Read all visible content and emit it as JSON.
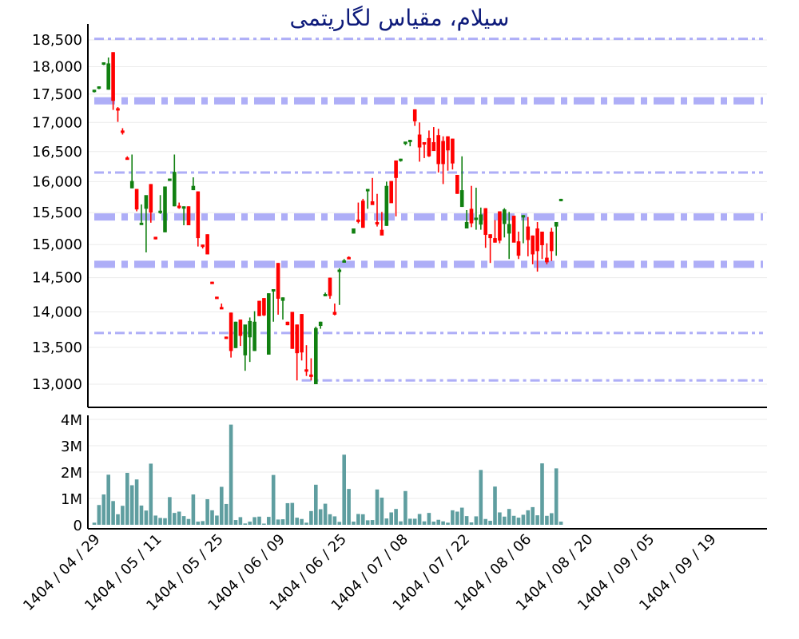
{
  "title": "سیلام، مقیاس لگاریتمی",
  "colors": {
    "up": "#118011",
    "down": "#ff0000",
    "volume": "#5f9ea0",
    "level": "#aeaef7",
    "title": "#0d1a7a",
    "grid": "#ebebeb",
    "axis": "#000000"
  },
  "chart_data": [
    {
      "type": "candlestick",
      "title": "سیلام، مقیاس لگاریتمی",
      "yscale": "log",
      "ylim": [
        12800,
        18600
      ],
      "yticks": [
        13000,
        13500,
        14000,
        14500,
        15000,
        15500,
        16000,
        16500,
        17000,
        17500,
        18000,
        18500
      ],
      "ytick_labels": [
        "13,000",
        "13,500",
        "14,000",
        "14,500",
        "15,000",
        "15,500",
        "16,000",
        "16,500",
        "17,000",
        "17,500",
        "18,000",
        "18,500"
      ],
      "xtick_labels": [
        "1404 / 04 / 29",
        "1404 / 05 / 11",
        "1404 / 05 / 25",
        "1404 / 06 / 09",
        "1404 / 06 / 25",
        "1404 / 07 / 08",
        "1404 / 07 / 22",
        "1404 / 08 / 06",
        "1404 / 08 / 20",
        "1404 / 09 / 05",
        "1404 / 09 / 19"
      ],
      "xtick_index": [
        0,
        13,
        26,
        39,
        52,
        65,
        78,
        91,
        104,
        117,
        130
      ],
      "levels": [
        {
          "price": 18520,
          "style": "thin-dashdot",
          "x_start_index": 0
        },
        {
          "price": 17380,
          "style": "thick-dashdot",
          "x_start_index": 0
        },
        {
          "price": 16150,
          "style": "thin-dashdot",
          "x_start_index": 0
        },
        {
          "price": 15430,
          "style": "thick-dashdot",
          "x_start_index": 0
        },
        {
          "price": 14700,
          "style": "thick-dashdot",
          "x_start_index": 0
        },
        {
          "price": 13700,
          "style": "thin-dashdot",
          "x_start_index": 0
        },
        {
          "price": 13050,
          "style": "thin-dashdot",
          "x_start_index": 44
        }
      ],
      "candles": [
        [
          17550,
          17580,
          17530,
          17580
        ],
        [
          17600,
          17640,
          17590,
          17640
        ],
        [
          18050,
          18080,
          18030,
          18080
        ],
        [
          17580,
          18170,
          17580,
          18060
        ],
        [
          18270,
          18270,
          17220,
          17380
        ],
        [
          17250,
          17270,
          17010,
          17230
        ],
        [
          16860,
          16900,
          16790,
          16820
        ],
        [
          16400,
          16420,
          16380,
          16390
        ],
        [
          15890,
          16450,
          15890,
          16010
        ],
        [
          15880,
          15880,
          15520,
          15550
        ],
        [
          15340,
          15630,
          15340,
          15340
        ],
        [
          15560,
          15560,
          14880,
          15780
        ],
        [
          15960,
          15960,
          15340,
          15500
        ],
        [
          15120,
          15120,
          15080,
          15080
        ],
        [
          15530,
          15780,
          15480,
          15530
        ],
        [
          15190,
          15920,
          15190,
          15920
        ],
        [
          16030,
          16050,
          16030,
          16050
        ],
        [
          15600,
          16450,
          15600,
          16160
        ],
        [
          15610,
          15660,
          15560,
          15600
        ],
        [
          15600,
          15600,
          15300,
          15600
        ],
        [
          15600,
          15600,
          15300,
          15300
        ],
        [
          15860,
          16070,
          15860,
          15930
        ],
        [
          15840,
          15840,
          14970,
          15100
        ],
        [
          15000,
          15000,
          14940,
          14980
        ],
        [
          15160,
          15160,
          14850,
          14850
        ],
        [
          14440,
          14440,
          14420,
          14420
        ],
        [
          14220,
          14220,
          14190,
          14190
        ],
        [
          14070,
          14120,
          14040,
          14040
        ],
        [
          13650,
          13650,
          13620,
          13620
        ],
        [
          13990,
          13990,
          13360,
          13450
        ],
        [
          13490,
          13860,
          13490,
          13860
        ],
        [
          13890,
          13890,
          13520,
          13660
        ],
        [
          13390,
          13680,
          13180,
          13820
        ],
        [
          13640,
          13920,
          13300,
          13870
        ],
        [
          13450,
          14010,
          13450,
          13860
        ],
        [
          14160,
          14160,
          13940,
          13940
        ],
        [
          14200,
          14200,
          13940,
          13950
        ],
        [
          13400,
          14270,
          13400,
          14270
        ],
        [
          14300,
          14320,
          13860,
          14330
        ],
        [
          14720,
          14720,
          13960,
          14190
        ],
        [
          14160,
          14210,
          13890,
          14210
        ],
        [
          13860,
          13860,
          13810,
          13810
        ],
        [
          14000,
          14000,
          13480,
          13480
        ],
        [
          13820,
          13820,
          13050,
          13420
        ],
        [
          13970,
          13970,
          13320,
          13430
        ],
        [
          13200,
          13530,
          13110,
          13170
        ],
        [
          13130,
          13350,
          13050,
          13120
        ],
        [
          13000,
          13790,
          13000,
          13770
        ],
        [
          13800,
          13860,
          13760,
          13860
        ],
        [
          14260,
          14280,
          14240,
          14260
        ],
        [
          14500,
          14500,
          14190,
          14230
        ],
        [
          14000,
          14120,
          13950,
          13960
        ],
        [
          14620,
          14640,
          14100,
          14620
        ],
        [
          14760,
          14780,
          14730,
          14760
        ],
        [
          14810,
          14820,
          14780,
          14800
        ],
        [
          15170,
          15250,
          15170,
          15250
        ],
        [
          15390,
          15660,
          15330,
          15360
        ],
        [
          15690,
          15720,
          15260,
          15260
        ],
        [
          15860,
          15880,
          15560,
          15880
        ],
        [
          15680,
          16060,
          15680,
          15620
        ],
        [
          15350,
          15800,
          15280,
          15340
        ],
        [
          15230,
          15510,
          15230,
          15140
        ],
        [
          15290,
          16000,
          15290,
          15930
        ],
        [
          16010,
          16010,
          15790,
          15650
        ],
        [
          16350,
          16350,
          15440,
          16060
        ],
        [
          16360,
          16380,
          16330,
          16380
        ],
        [
          16650,
          16650,
          16610,
          16670
        ],
        [
          16700,
          16700,
          16590,
          16700
        ],
        [
          17230,
          17230,
          16940,
          17020
        ],
        [
          16790,
          17000,
          16330,
          16570
        ],
        [
          16660,
          16660,
          16390,
          16620
        ],
        [
          16730,
          16860,
          16410,
          16420
        ],
        [
          16660,
          16920,
          16570,
          16510
        ],
        [
          16780,
          16890,
          16150,
          16290
        ],
        [
          16680,
          16760,
          15960,
          16290
        ],
        [
          16760,
          16760,
          16180,
          16520
        ],
        [
          16720,
          16720,
          16200,
          16300
        ],
        [
          16110,
          16110,
          15800,
          15800
        ],
        [
          15590,
          16420,
          15590,
          15860
        ],
        [
          15250,
          15540,
          15280,
          15350
        ],
        [
          15560,
          15930,
          15270,
          15330
        ],
        [
          15400,
          15900,
          15230,
          15420
        ],
        [
          15310,
          15580,
          15230,
          15470
        ],
        [
          15570,
          15570,
          14950,
          15150
        ],
        [
          15160,
          15160,
          14720,
          15100
        ],
        [
          15100,
          15380,
          15030,
          15030
        ],
        [
          15520,
          15520,
          15020,
          15060
        ],
        [
          15320,
          15570,
          15110,
          15550
        ],
        [
          15170,
          15510,
          14780,
          15320
        ],
        [
          15450,
          15450,
          15060,
          15030
        ],
        [
          15050,
          15200,
          14780,
          14830
        ],
        [
          15460,
          15460,
          15020,
          15460
        ],
        [
          15280,
          15430,
          14820,
          15070
        ],
        [
          15140,
          15140,
          14700,
          14850
        ],
        [
          15250,
          15350,
          14590,
          14900
        ],
        [
          15200,
          15200,
          14780,
          14990
        ],
        [
          14800,
          15020,
          14700,
          14730
        ],
        [
          15200,
          15260,
          14750,
          14900
        ],
        [
          15280,
          15330,
          14830,
          15350
        ],
        [
          15700,
          15720,
          15680,
          15720
        ]
      ],
      "candle_format": [
        "open",
        "high",
        "low",
        "close"
      ]
    },
    {
      "type": "bar",
      "title": "Volume",
      "ylim": [
        0,
        4000000
      ],
      "yticks": [
        0,
        1000000,
        2000000,
        3000000,
        4000000
      ],
      "ytick_labels": [
        "0",
        "1M",
        "2M",
        "3M",
        "4M"
      ],
      "values": [
        0.08,
        0.75,
        1.15,
        1.9,
        0.9,
        0.4,
        0.72,
        1.97,
        1.5,
        1.72,
        0.73,
        0.54,
        2.32,
        0.35,
        0.26,
        0.25,
        1.05,
        0.45,
        0.5,
        0.33,
        0.22,
        1.15,
        0.12,
        0.14,
        0.97,
        0.55,
        0.35,
        1.44,
        0.79,
        3.8,
        0.18,
        0.29,
        0.05,
        0.12,
        0.29,
        0.31,
        0.02,
        0.3,
        1.89,
        0.2,
        0.21,
        0.82,
        0.83,
        0.27,
        0.22,
        0.08,
        0.52,
        1.52,
        0.59,
        0.8,
        0.4,
        0.32,
        0.11,
        2.66,
        1.36,
        0.12,
        0.41,
        0.4,
        0.17,
        0.18,
        1.34,
        1.03,
        0.24,
        0.47,
        0.6,
        0.13,
        1.28,
        0.23,
        0.23,
        0.41,
        0.13,
        0.45,
        0.12,
        0.19,
        0.13,
        0.08,
        0.55,
        0.5,
        0.65,
        0.33,
        0.09,
        0.32,
        2.08,
        0.22,
        0.15,
        1.45,
        0.47,
        0.31,
        0.6,
        0.34,
        0.27,
        0.38,
        0.55,
        0.67,
        0.36,
        2.33,
        0.34,
        0.44,
        2.14,
        0.12
      ],
      "value_unit": "millions"
    }
  ]
}
